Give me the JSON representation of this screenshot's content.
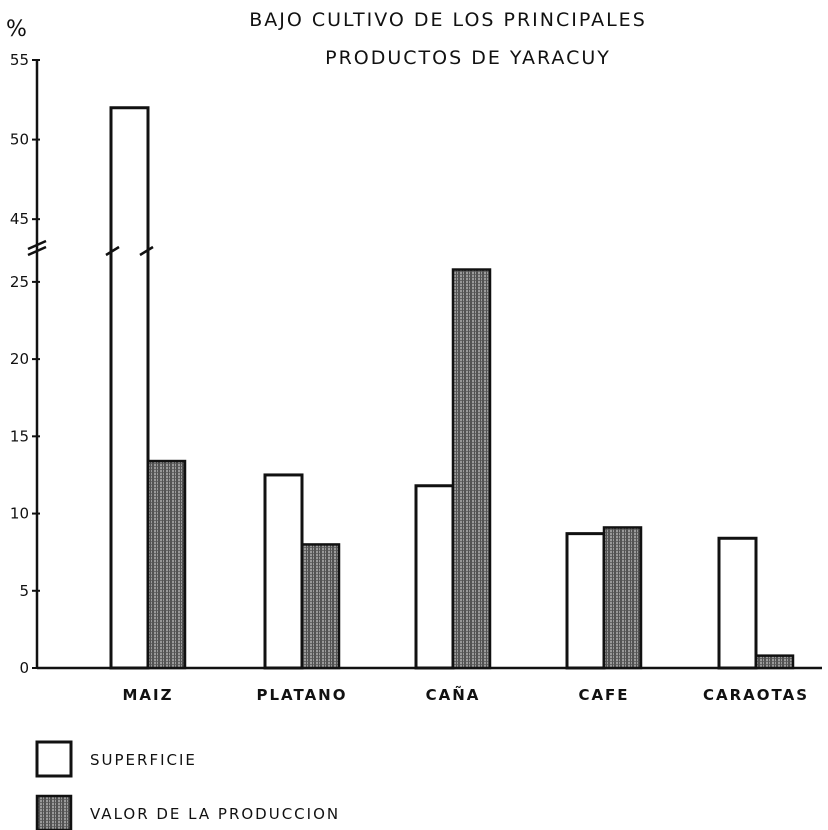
{
  "chart_data": {
    "type": "bar",
    "title": [
      "BAJO CULTIVO  DE  LOS PRINCIPALES",
      "PRODUCTOS DE YARACUY"
    ],
    "y_unit": "%",
    "categories": [
      "MAIZ",
      "PLATANO",
      "CAÑA",
      "CAFE",
      "CARAOTAS"
    ],
    "series": [
      {
        "name": "SUPERFICIE",
        "style": "outline",
        "values": [
          52,
          12.5,
          11.8,
          8.7,
          8.4
        ]
      },
      {
        "name": "VALOR DE LA PRODUCCION",
        "style": "hatched",
        "values": [
          13.4,
          8.0,
          25.8,
          9.1,
          0.8
        ]
      }
    ],
    "y_ticks": [
      "0",
      "5",
      "10",
      "15",
      "20",
      "25",
      "45",
      "50",
      "55"
    ],
    "ylim": [
      0,
      55
    ],
    "axis_break": {
      "from": 27,
      "to": 43
    },
    "grid": false,
    "legend_position": "bottom-left"
  }
}
